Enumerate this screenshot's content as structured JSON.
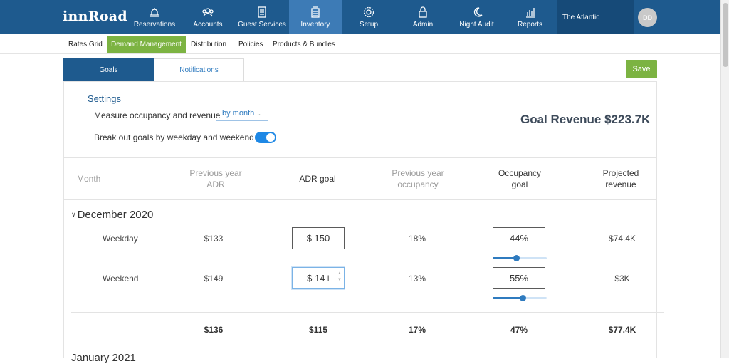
{
  "app": {
    "logo": "innRoad"
  },
  "nav": [
    {
      "label": "Reservations",
      "icon": "bell-icon"
    },
    {
      "label": "Accounts",
      "icon": "accounts-icon"
    },
    {
      "label": "Guest Services",
      "icon": "clipboard-icon"
    },
    {
      "label": "Inventory",
      "icon": "inventory-icon",
      "active": true
    },
    {
      "label": "Setup",
      "icon": "gear-icon"
    },
    {
      "label": "Admin",
      "icon": "lock-icon"
    },
    {
      "label": "Night Audit",
      "icon": "moon-icon"
    },
    {
      "label": "Reports",
      "icon": "bar-chart-icon"
    }
  ],
  "property": "The Atlantic",
  "avatar": "DD",
  "subnav": [
    {
      "label": "Rates Grid"
    },
    {
      "label": "Demand Management",
      "active": true
    },
    {
      "label": "Distribution"
    },
    {
      "label": "Policies"
    },
    {
      "label": "Products & Bundles"
    }
  ],
  "tabs": {
    "goals": "Goals",
    "notifications": "Notifications"
  },
  "save_label": "Save",
  "settings": {
    "title": "Settings",
    "measure_label": "Measure occupancy and revenue",
    "measure_value": "by month",
    "breakout_label": "Break out goals by weekday and weekend",
    "breakout_on": true
  },
  "goal_revenue": "Goal Revenue $223.7K",
  "table": {
    "headers": {
      "month": "Month",
      "prev_adr_1": "Previous year",
      "prev_adr_2": "ADR",
      "adr_goal": "ADR goal",
      "prev_occ_1": "Previous year",
      "prev_occ_2": "occupancy",
      "occ_goal_1": "Occupancy",
      "occ_goal_2": "goal",
      "proj_rev_1": "Projected",
      "proj_rev_2": "revenue"
    },
    "month": "December 2020",
    "rows": [
      {
        "label": "Weekday",
        "prev_adr": "$133",
        "adr_goal": "$ 150",
        "prev_occ": "18%",
        "occ_goal": "44%",
        "occ_level": 0.44,
        "projected": "$74.4K"
      },
      {
        "label": "Weekend",
        "prev_adr": "$149",
        "adr_goal": "$ 14",
        "prev_occ": "13%",
        "occ_goal": "55%",
        "occ_level": 0.55,
        "projected": "$3K"
      }
    ],
    "totals": {
      "prev_adr": "$136",
      "adr_goal": "$115",
      "prev_occ": "17%",
      "occ_goal": "47%",
      "projected": "$77.4K"
    },
    "next_month": "January 2021"
  },
  "colors": {
    "header": "#1e5a8e",
    "accent_green": "#7cb342",
    "link_blue": "#2f7bbf"
  }
}
